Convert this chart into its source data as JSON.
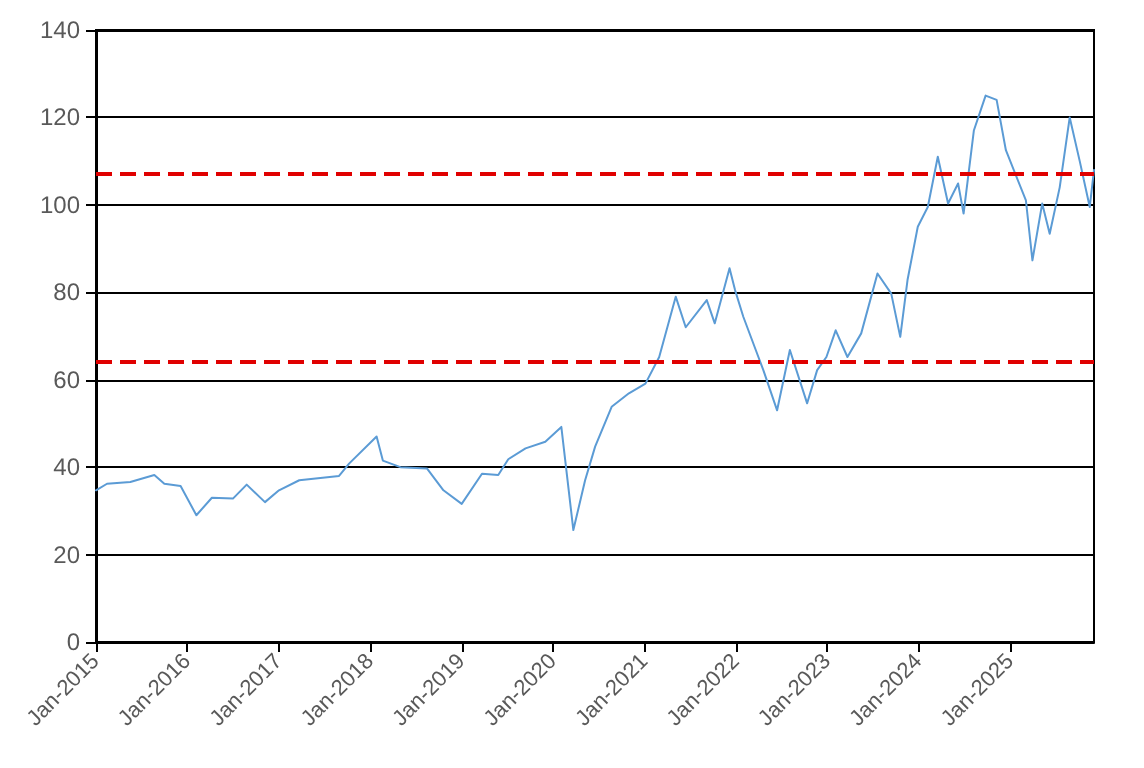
{
  "chart_data": {
    "type": "line",
    "x": [
      "2015-01-01",
      "2015-02-14",
      "2015-05-18",
      "2015-08-22",
      "2015-10-01",
      "2015-12-05",
      "2016-02-06",
      "2016-04-08",
      "2016-07-01",
      "2016-08-25",
      "2016-11-06",
      "2017-01-01",
      "2017-03-23",
      "2017-08-29",
      "2017-10-08",
      "2018-01-26",
      "2018-02-20",
      "2018-05-01",
      "2018-08-15",
      "2018-10-20",
      "2019-01-01",
      "2019-03-23",
      "2019-05-27",
      "2019-07-06",
      "2019-09-13",
      "2019-12-01",
      "2020-02-03",
      "2020-03-22",
      "2020-05-08",
      "2020-06-17",
      "2020-08-22",
      "2020-10-30",
      "2021-01-04",
      "2021-02-28",
      "2021-05-05",
      "2021-06-14",
      "2021-09-06",
      "2021-10-08",
      "2021-12-06",
      "2021-12-28",
      "2022-01-30",
      "2022-03-26",
      "2022-04-20",
      "2022-06-14",
      "2022-08-04",
      "2022-10-12",
      "2022-11-21",
      "2022-12-28",
      "2023-02-03",
      "2023-03-22",
      "2023-05-16",
      "2023-07-20",
      "2023-09-13",
      "2023-10-19",
      "2023-11-17",
      "2023-12-28",
      "2024-02-06",
      "2024-03-17",
      "2024-04-27",
      "2024-06-06",
      "2024-06-28",
      "2024-08-08",
      "2024-09-24",
      "2024-11-07",
      "2024-12-14",
      "2025-03-04",
      "2025-03-30",
      "2025-05-08",
      "2025-06-07",
      "2025-07-17",
      "2025-08-26",
      "2025-10-05",
      "2025-11-14",
      "2025-12-01"
    ],
    "series": [
      {
        "color": "#5b9bd5",
        "values": [
          34.7,
          36.2,
          36.6,
          38.2,
          36.2,
          35.7,
          29,
          33,
          32.8,
          36,
          32,
          34.7,
          37,
          38,
          40.8,
          47,
          41.5,
          40,
          39.7,
          34.7,
          31.6,
          38.5,
          38.2,
          41.8,
          44.3,
          45.8,
          49.2,
          25.6,
          37,
          44.7,
          53.8,
          56.9,
          59.1,
          65.2,
          79,
          72,
          78.2,
          72.9,
          85.5,
          80.5,
          74.4,
          66,
          62.2,
          53,
          66.8,
          54.6,
          62.2,
          65.2,
          71.3,
          65.2,
          70.6,
          84.3,
          79.7,
          69.8,
          82.8,
          95,
          99.5,
          111,
          100.3,
          104.9,
          98,
          117,
          125,
          124,
          112.5,
          101,
          87.3,
          100.3,
          93.4,
          104,
          120,
          110,
          99.5,
          108
        ]
      }
    ],
    "xlim": [
      "2015-01-01",
      "2025-12-01"
    ],
    "xticks": [
      {
        "value": "2015-01-01",
        "label": "Jan-2015"
      },
      {
        "value": "2016-01-01",
        "label": "Jan-2016"
      },
      {
        "value": "2017-01-01",
        "label": "Jan-2017"
      },
      {
        "value": "2018-01-01",
        "label": "Jan-2018"
      },
      {
        "value": "2019-01-01",
        "label": "Jan-2019"
      },
      {
        "value": "2020-01-01",
        "label": "Jan-2020"
      },
      {
        "value": "2021-01-01",
        "label": "Jan-2021"
      },
      {
        "value": "2022-01-01",
        "label": "Jan-2022"
      },
      {
        "value": "2023-01-01",
        "label": "Jan-2023"
      },
      {
        "value": "2024-01-01",
        "label": "Jan-2024"
      },
      {
        "value": "2025-01-01",
        "label": "Jan-2025"
      }
    ],
    "ylim": [
      0,
      140
    ],
    "yticks": [
      0,
      20,
      40,
      60,
      80,
      100,
      120,
      140
    ],
    "grid": "y",
    "marker": "none",
    "line_style": "solid",
    "ref_lines": [
      {
        "axis": "y",
        "value": 107,
        "color": "#e00000",
        "line_style": "dashed"
      },
      {
        "axis": "y",
        "value": 64,
        "color": "#e00000",
        "line_style": "dashed"
      }
    ]
  }
}
